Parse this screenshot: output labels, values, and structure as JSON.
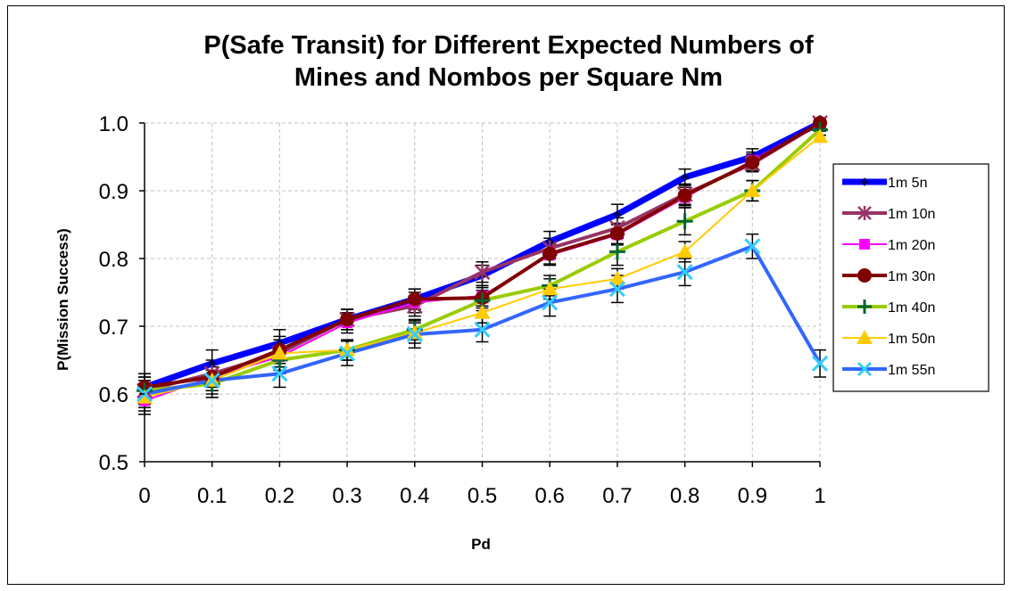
{
  "chart_data": {
    "type": "line",
    "title_lines": [
      "P(Safe Transit) for Different Expected Numbers of",
      "Mines and Nombos per Square Nm"
    ],
    "xlabel": "Pd",
    "ylabel": "P(Mission Success)",
    "x": [
      0,
      0.1,
      0.2,
      0.3,
      0.4,
      0.5,
      0.6,
      0.7,
      0.8,
      0.9,
      1
    ],
    "x_tick_labels": [
      "0",
      "0.1",
      "0.2",
      "0.3",
      "0.4",
      "0.5",
      "0.6",
      "0.7",
      "0.8",
      "0.9",
      "1"
    ],
    "y_tick_labels": [
      "0.5",
      "0.6",
      "0.7",
      "0.8",
      "0.9",
      "1.0"
    ],
    "ylim": [
      0.5,
      1.0
    ],
    "grid": true,
    "error_bars": true,
    "legend_position": "right",
    "series": [
      {
        "name": "1m 5n",
        "color": "#0000ff",
        "marker": "diamond",
        "width": 7,
        "values": [
          0.61,
          0.645,
          0.675,
          0.71,
          0.74,
          0.775,
          0.825,
          0.865,
          0.92,
          0.95,
          1.0
        ],
        "errors": [
          0.02,
          0.02,
          0.02,
          0.015,
          0.015,
          0.015,
          0.015,
          0.015,
          0.012,
          0.012,
          0.005
        ]
      },
      {
        "name": "1m 10n",
        "color": "#993366",
        "marker": "asterisk",
        "width": 4,
        "values": [
          0.605,
          0.63,
          0.66,
          0.71,
          0.73,
          0.78,
          0.815,
          0.845,
          0.895,
          0.94,
          1.0
        ],
        "errors": [
          0.02,
          0.02,
          0.02,
          0.015,
          0.015,
          0.015,
          0.015,
          0.015,
          0.015,
          0.012,
          0.005
        ]
      },
      {
        "name": "1m 20n",
        "color": "#ff00ff",
        "marker": "square",
        "width": 2,
        "values": [
          0.59,
          0.625,
          0.655,
          0.705,
          0.735,
          0.745,
          0.805,
          0.835,
          0.89,
          0.945,
          1.0
        ],
        "errors": [
          0.02,
          0.02,
          0.02,
          0.015,
          0.015,
          0.015,
          0.015,
          0.015,
          0.015,
          0.012,
          0.005
        ]
      },
      {
        "name": "1m 30n",
        "color": "#800000",
        "marker": "circle",
        "width": 4,
        "values": [
          0.61,
          0.625,
          0.665,
          0.71,
          0.74,
          0.742,
          0.807,
          0.837,
          0.893,
          0.942,
          1.0
        ],
        "errors": [
          0.02,
          0.02,
          0.02,
          0.015,
          0.015,
          0.015,
          0.015,
          0.015,
          0.015,
          0.012,
          0.005
        ]
      },
      {
        "name": "1m 40n",
        "color": "#99cc00",
        "marker": "plus",
        "width": 4,
        "values": [
          0.605,
          0.615,
          0.65,
          0.665,
          0.695,
          0.738,
          0.76,
          0.81,
          0.855,
          0.9,
          0.99
        ],
        "errors": [
          0.02,
          0.02,
          0.02,
          0.015,
          0.015,
          0.015,
          0.015,
          0.02,
          0.02,
          0.015,
          0.008
        ]
      },
      {
        "name": "1m 50n",
        "color": "#ffcc00",
        "marker": "triangle",
        "width": 2,
        "values": [
          0.595,
          0.62,
          0.66,
          0.665,
          0.69,
          0.72,
          0.755,
          0.77,
          0.81,
          0.9,
          0.98
        ],
        "errors": [
          0.02,
          0.02,
          0.02,
          0.015,
          0.015,
          0.015,
          0.015,
          0.015,
          0.015,
          0.015,
          0.008
        ]
      },
      {
        "name": "1m 55n",
        "color": "#3366ff",
        "marker": "x",
        "width": 4,
        "values": [
          0.6,
          0.62,
          0.63,
          0.66,
          0.688,
          0.695,
          0.735,
          0.755,
          0.78,
          0.818,
          0.645
        ],
        "errors": [
          0.02,
          0.025,
          0.02,
          0.018,
          0.02,
          0.018,
          0.02,
          0.02,
          0.02,
          0.018,
          0.02
        ]
      }
    ]
  }
}
